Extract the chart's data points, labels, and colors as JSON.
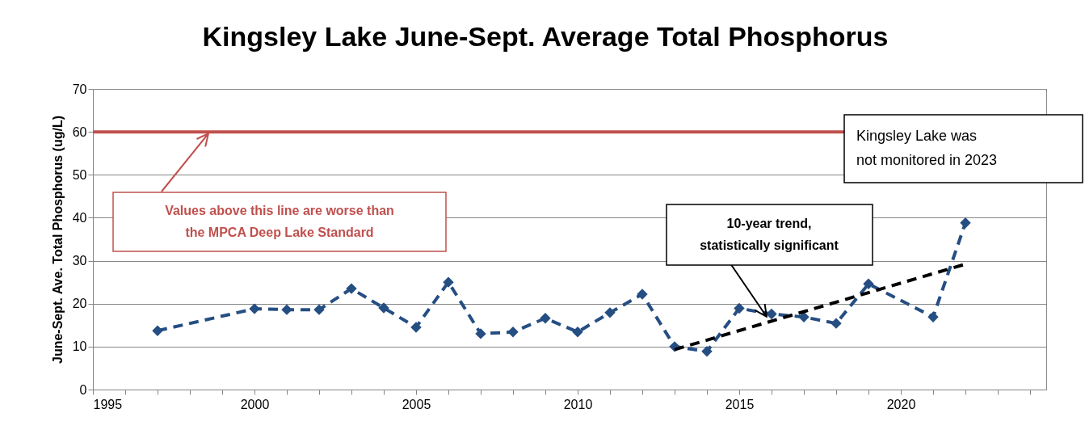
{
  "chart_data": {
    "type": "line",
    "title": "Kingsley Lake June-Sept. Average Total Phosphorus",
    "ylabel": "June-Sept. Ave. Total Phosphorus (ug/L)",
    "x": [
      1997,
      2000,
      2001,
      2002,
      2003,
      2004,
      2005,
      2006,
      2007,
      2008,
      2009,
      2010,
      2011,
      2012,
      2013,
      2014,
      2015,
      2016,
      2017,
      2018,
      2019,
      2021,
      2022
    ],
    "series": [
      {
        "color": "#254e82",
        "marker": "diamond",
        "line_style": "dashed",
        "values": [
          13.7,
          18.8,
          18.6,
          18.6,
          23.5,
          19.0,
          14.5,
          25.0,
          13.0,
          13.4,
          16.6,
          13.4,
          17.9,
          22.2,
          10.0,
          8.9,
          18.9,
          17.6,
          16.9,
          15.4,
          24.6,
          16.9,
          38.8
        ]
      },
      {
        "type": "line",
        "color": "#000000",
        "marker": "none",
        "line_style": "dashed",
        "x": [
          2013,
          2022
        ],
        "values": [
          9.3,
          29.2
        ]
      }
    ],
    "xlim": [
      1995,
      2024.5
    ],
    "xticks": [
      1995,
      {
        "value": 1996,
        "label": null
      },
      {
        "value": 1997,
        "label": null
      },
      {
        "value": 1998,
        "label": null
      },
      {
        "value": 1999,
        "label": null
      },
      2000,
      {
        "value": 2001,
        "label": null
      },
      {
        "value": 2002,
        "label": null
      },
      {
        "value": 2003,
        "label": null
      },
      {
        "value": 2004,
        "label": null
      },
      2005,
      {
        "value": 2006,
        "label": null
      },
      {
        "value": 2007,
        "label": null
      },
      {
        "value": 2008,
        "label": null
      },
      {
        "value": 2009,
        "label": null
      },
      2010,
      {
        "value": 2011,
        "label": null
      },
      {
        "value": 2012,
        "label": null
      },
      {
        "value": 2013,
        "label": null
      },
      {
        "value": 2014,
        "label": null
      },
      2015,
      {
        "value": 2016,
        "label": null
      },
      {
        "value": 2017,
        "label": null
      },
      {
        "value": 2018,
        "label": null
      },
      {
        "value": 2019,
        "label": null
      },
      2020,
      {
        "value": 2021,
        "label": null
      },
      {
        "value": 2022,
        "label": null
      },
      {
        "value": 2023,
        "label": null
      },
      {
        "value": 2024,
        "label": null
      }
    ],
    "ylim": [
      0,
      70
    ],
    "yticks": [
      0,
      10,
      20,
      30,
      40,
      50,
      60,
      70
    ],
    "grid": "y",
    "ref_lines": [
      {
        "axis": "y",
        "value": 60,
        "label": "Values above this line are worse than the MPCA Deep Lake Standard",
        "color": "#c0504d",
        "line_style": "solid"
      }
    ],
    "annotations": [
      "10-year trend, statistically significant",
      "Kingsley Lake was not monitored in 2023"
    ]
  }
}
